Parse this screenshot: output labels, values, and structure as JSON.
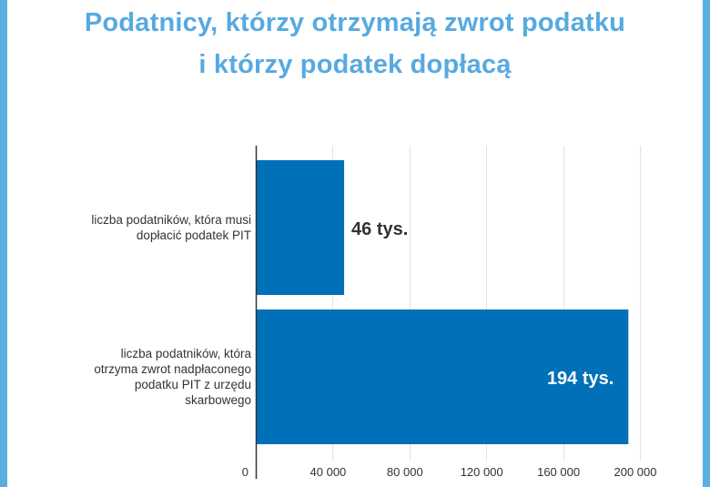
{
  "title_lines": [
    "Podatnicy, którzy otrzymają zwrot podatku",
    "i którzy podatek dopłacą"
  ],
  "colors": {
    "accent": "#5aaee0",
    "title": "#56aae0",
    "bar": "#0070b8",
    "grid": "#e2e2e2",
    "axis": "#333333",
    "text": "#333333",
    "label_inside": "#ffffff"
  },
  "chart_data": {
    "type": "bar",
    "orientation": "horizontal",
    "title": "Podatnicy, którzy otrzymają zwrot podatku i którzy podatek dopłacą",
    "categories": [
      "liczba podatników, która musi dopłacić podatek PIT",
      "liczba podatników, która otrzyma zwrot nadpłaconego podatku PIT z urzędu skarbowego"
    ],
    "category_label_lines": [
      [
        "liczba podatników, która musi",
        "dopłacić podatek PIT"
      ],
      [
        "liczba podatników, która",
        "otrzyma zwrot nadpłaconego",
        "podatku PIT z urzędu",
        "skarbowego"
      ]
    ],
    "values": [
      46000,
      194000
    ],
    "data_labels": [
      "46 tys.",
      "194 tys."
    ],
    "xlim": [
      0,
      200000
    ],
    "x_ticks": [
      0,
      40000,
      80000,
      120000,
      160000,
      200000
    ],
    "x_tick_labels": [
      "0",
      "40 000",
      "80 000",
      "120 000",
      "160 000",
      "200 000"
    ],
    "grid": true,
    "legend": "none"
  }
}
